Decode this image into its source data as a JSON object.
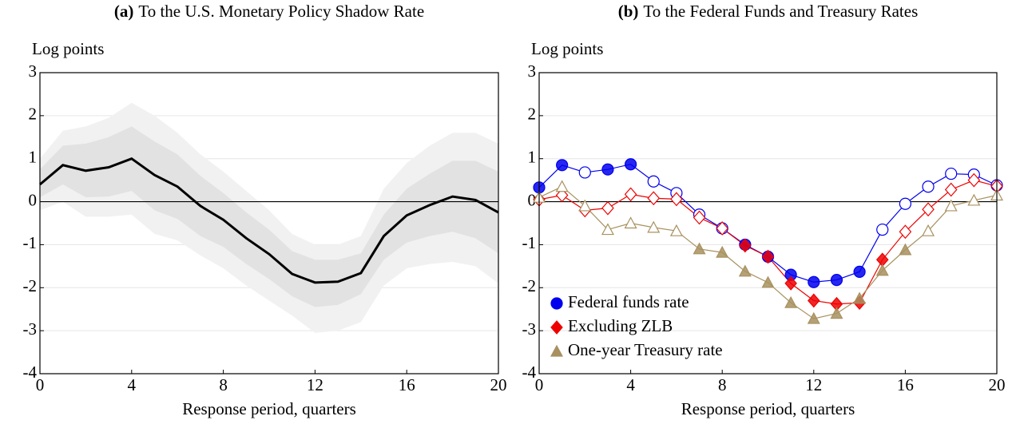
{
  "chart_data": [
    {
      "type": "band-line",
      "label": "(a)",
      "title": "To the U.S. Monetary Policy Shadow Rate",
      "ylabel": "Log points",
      "xlabel": "Response period, quarters",
      "x": [
        0,
        1,
        2,
        3,
        4,
        5,
        6,
        7,
        8,
        9,
        10,
        11,
        12,
        13,
        14,
        15,
        16,
        17,
        18,
        19,
        20
      ],
      "xlim": [
        0,
        20
      ],
      "xticks": [
        0,
        4,
        8,
        12,
        16,
        20
      ],
      "ylim": [
        -4,
        3
      ],
      "yticks": [
        -4,
        -3,
        -2,
        -1,
        0,
        1,
        2,
        3
      ],
      "grid": true,
      "bands": [
        {
          "color": "#f1f1f1",
          "lower": [
            -0.2,
            0.0,
            -0.35,
            -0.35,
            -0.3,
            -0.75,
            -0.9,
            -1.25,
            -1.55,
            -1.95,
            -2.3,
            -2.65,
            -3.05,
            -3.0,
            -2.8,
            -1.95,
            -1.55,
            -1.45,
            -1.4,
            -1.5,
            -1.9
          ],
          "upper": [
            1.0,
            1.65,
            1.75,
            1.95,
            2.3,
            2.0,
            1.6,
            1.1,
            0.7,
            0.25,
            -0.2,
            -0.75,
            -1.0,
            -1.0,
            -0.8,
            0.3,
            0.9,
            1.3,
            1.6,
            1.6,
            1.35
          ]
        },
        {
          "color": "#e2e2e2",
          "lower": [
            0.1,
            0.4,
            0.1,
            0.12,
            0.25,
            -0.2,
            -0.4,
            -0.8,
            -1.05,
            -1.45,
            -1.8,
            -2.2,
            -2.45,
            -2.4,
            -2.15,
            -1.35,
            -0.95,
            -0.8,
            -0.7,
            -0.85,
            -1.2
          ],
          "upper": [
            0.75,
            1.3,
            1.35,
            1.5,
            1.75,
            1.4,
            1.1,
            0.6,
            0.2,
            -0.25,
            -0.65,
            -1.15,
            -1.35,
            -1.35,
            -1.2,
            -0.3,
            0.3,
            0.65,
            0.95,
            0.95,
            0.7
          ]
        }
      ],
      "series": [
        {
          "color": "#000000",
          "values": [
            0.4,
            0.85,
            0.72,
            0.8,
            1.0,
            0.62,
            0.35,
            -0.1,
            -0.42,
            -0.85,
            -1.22,
            -1.68,
            -1.88,
            -1.86,
            -1.66,
            -0.8,
            -0.32,
            -0.08,
            0.12,
            0.04,
            -0.25
          ]
        }
      ]
    },
    {
      "type": "marker-line",
      "label": "(b)",
      "title": "To the Federal Funds and Treasury Rates",
      "ylabel": "Log points",
      "xlabel": "Response period, quarters",
      "x": [
        0,
        1,
        2,
        3,
        4,
        5,
        6,
        7,
        8,
        9,
        10,
        11,
        12,
        13,
        14,
        15,
        16,
        17,
        18,
        19,
        20
      ],
      "xlim": [
        0,
        20
      ],
      "xticks": [
        0,
        4,
        8,
        12,
        16,
        20
      ],
      "ylim": [
        -4,
        3
      ],
      "yticks": [
        -4,
        -3,
        -2,
        -1,
        0,
        1,
        2,
        3
      ],
      "grid": true,
      "legend": "lower-left",
      "series": [
        {
          "name": "Federal funds rate",
          "color": "#0000ee",
          "marker": "circle",
          "values": [
            0.33,
            0.85,
            0.68,
            0.75,
            0.87,
            0.47,
            0.2,
            -0.3,
            -0.62,
            -1.0,
            -1.28,
            -1.7,
            -1.87,
            -1.82,
            -1.63,
            -0.65,
            -0.05,
            0.35,
            0.65,
            0.63,
            0.38
          ],
          "filled": [
            true,
            true,
            false,
            true,
            true,
            false,
            false,
            false,
            false,
            true,
            true,
            true,
            true,
            true,
            true,
            false,
            false,
            false,
            false,
            false,
            false
          ]
        },
        {
          "name": "Excluding ZLB",
          "color": "#ee0000",
          "marker": "diamond",
          "values": [
            0.05,
            0.15,
            -0.2,
            -0.15,
            0.17,
            0.08,
            0.06,
            -0.37,
            -0.62,
            -1.02,
            -1.28,
            -1.9,
            -2.3,
            -2.38,
            -2.35,
            -1.35,
            -0.7,
            -0.18,
            0.28,
            0.5,
            0.36
          ],
          "filled": [
            false,
            false,
            false,
            false,
            false,
            false,
            false,
            false,
            false,
            true,
            true,
            true,
            true,
            true,
            true,
            true,
            false,
            false,
            false,
            false,
            false
          ]
        },
        {
          "name": "One-year Treasury rate",
          "color": "#a8915f",
          "marker": "triangle",
          "values": [
            0.1,
            0.35,
            -0.1,
            -0.65,
            -0.5,
            -0.6,
            -0.68,
            -1.1,
            -1.18,
            -1.62,
            -1.88,
            -2.35,
            -2.72,
            -2.6,
            -2.25,
            -1.6,
            -1.12,
            -0.68,
            -0.1,
            0.03,
            0.15
          ],
          "filled": [
            false,
            false,
            false,
            false,
            false,
            false,
            false,
            true,
            true,
            true,
            true,
            true,
            true,
            true,
            true,
            true,
            true,
            false,
            false,
            false,
            false
          ]
        }
      ]
    }
  ]
}
